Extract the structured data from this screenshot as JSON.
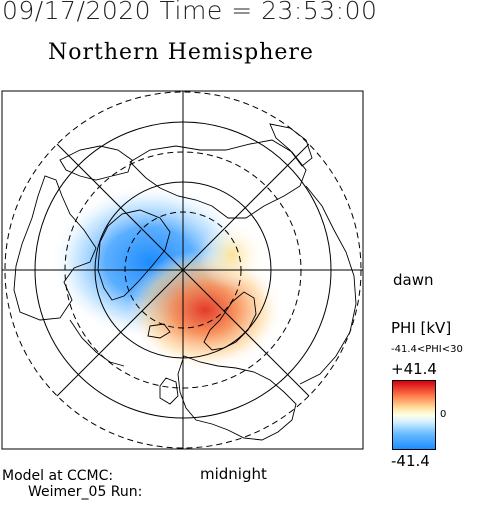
{
  "header": {
    "date": "09/17/2020",
    "time_label": "Time",
    "equals": "=",
    "time": "23:53:00"
  },
  "map": {
    "title": "Northern Hemisphere",
    "dawn_label": "dawn",
    "midnight_label": "midnight"
  },
  "legend": {
    "title": "PHI [kV]",
    "range_text": "-41.4<PHI<30",
    "max": "+41.4",
    "mid": "0",
    "min": "-41.4",
    "colors": {
      "max": "#d6000f",
      "mid": "#ffffe6",
      "min": "#1e8cff"
    }
  },
  "footer": {
    "model": "Model at CCMC:",
    "run": "Weimer_05 Run:"
  }
}
